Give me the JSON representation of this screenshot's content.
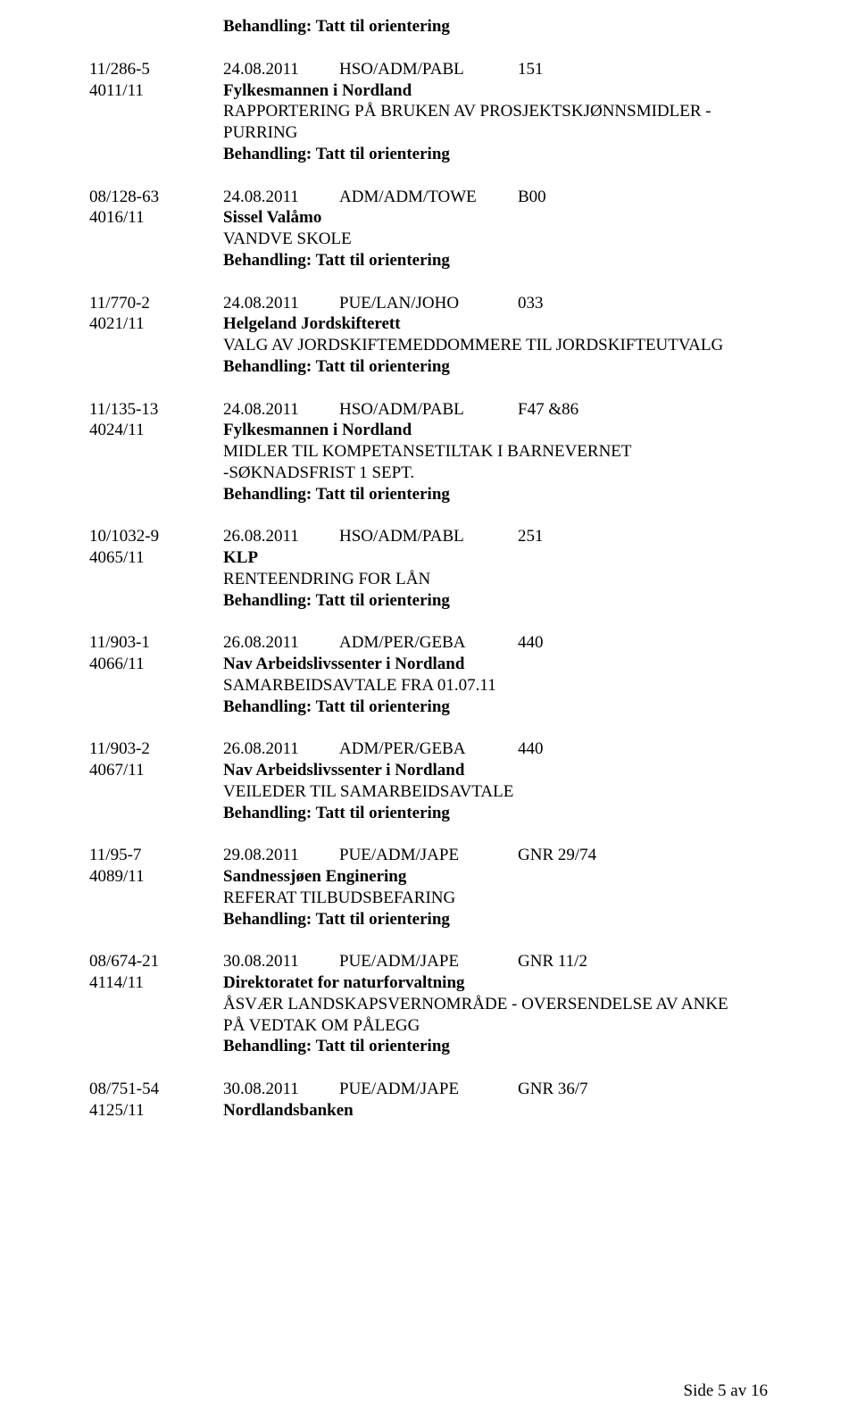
{
  "treatment_label": "Behandling: Tatt til orientering",
  "footer": "Side 5 av 16",
  "entries": [
    {
      "left": [
        "11/286-5",
        "4011/11"
      ],
      "date": "24.08.2011",
      "dept": "HSO/ADM/PABL",
      "code": "151",
      "sender": "Fylkesmannen i Nordland",
      "body": [
        "RAPPORTERING PÅ BRUKEN AV PROSJEKTSKJØNNSMIDLER -",
        "PURRING"
      ]
    },
    {
      "left": [
        "08/128-63",
        "4016/11"
      ],
      "date": "24.08.2011",
      "dept": "ADM/ADM/TOWE",
      "code": "B00",
      "sender": "Sissel Valåmo",
      "body": [
        "VANDVE SKOLE"
      ]
    },
    {
      "left": [
        "11/770-2",
        "4021/11"
      ],
      "date": "24.08.2011",
      "dept": "PUE/LAN/JOHO",
      "code": "033",
      "sender": "Helgeland Jordskifterett",
      "body": [
        "VALG AV JORDSKIFTEMEDDOMMERE TIL JORDSKIFTEUTVALG"
      ]
    },
    {
      "left": [
        "11/135-13",
        "4024/11"
      ],
      "date": "24.08.2011",
      "dept": "HSO/ADM/PABL",
      "code": "F47 &86",
      "sender": "Fylkesmannen i Nordland",
      "body": [
        "MIDLER TIL KOMPETANSETILTAK I BARNEVERNET",
        "-SØKNADSFRIST 1 SEPT."
      ]
    },
    {
      "left": [
        "10/1032-9",
        "4065/11"
      ],
      "date": "26.08.2011",
      "dept": "HSO/ADM/PABL",
      "code": "251",
      "sender": "KLP",
      "body": [
        "RENTEENDRING FOR LÅN"
      ]
    },
    {
      "left": [
        "11/903-1",
        "4066/11"
      ],
      "date": "26.08.2011",
      "dept": "ADM/PER/GEBA",
      "code": "440",
      "sender": "Nav Arbeidslivssenter i Nordland",
      "body": [
        "SAMARBEIDSAVTALE FRA 01.07.11"
      ]
    },
    {
      "left": [
        "11/903-2",
        "4067/11"
      ],
      "date": "26.08.2011",
      "dept": "ADM/PER/GEBA",
      "code": "440",
      "sender": "Nav Arbeidslivssenter i Nordland",
      "body": [
        "VEILEDER TIL SAMARBEIDSAVTALE"
      ]
    },
    {
      "left": [
        "11/95-7",
        "4089/11"
      ],
      "date": "29.08.2011",
      "dept": "PUE/ADM/JAPE",
      "code": "GNR 29/74",
      "sender": "Sandnessjøen Enginering",
      "body": [
        "REFERAT TILBUDSBEFARING"
      ]
    },
    {
      "left": [
        "08/674-21",
        "4114/11"
      ],
      "date": "30.08.2011",
      "dept": "PUE/ADM/JAPE",
      "code": "GNR 11/2",
      "sender": "Direktoratet for naturforvaltning",
      "body": [
        "ÅSVÆR LANDSKAPSVERNOMRÅDE - OVERSENDELSE AV ANKE",
        "PÅ VEDTAK OM PÅLEGG"
      ]
    },
    {
      "left": [
        "08/751-54",
        "4125/11"
      ],
      "date": "30.08.2011",
      "dept": "PUE/ADM/JAPE",
      "code": "GNR 36/7",
      "sender": "Nordlandsbanken",
      "body": [],
      "no_treatment": true
    }
  ]
}
